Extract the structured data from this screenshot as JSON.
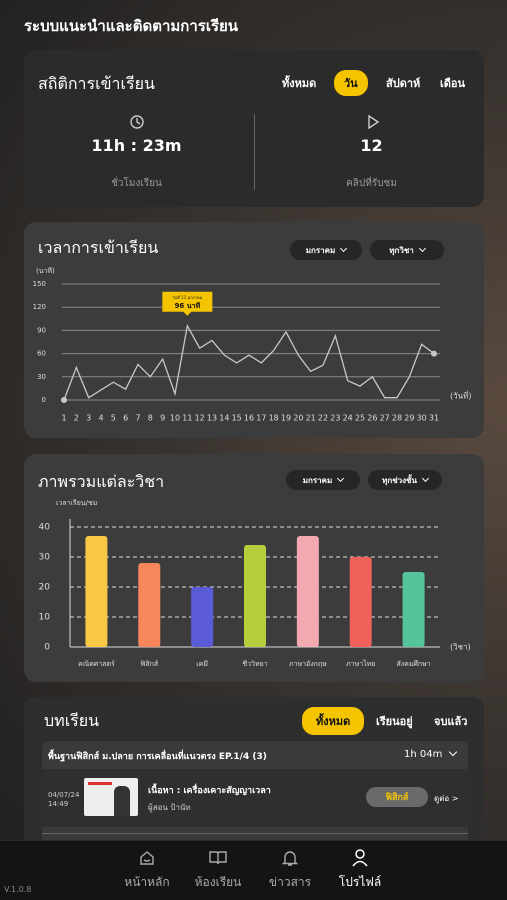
{
  "header": {
    "title": "ระบบแนะนำและติดตามการเรียน"
  },
  "stats": {
    "title": "สถิติการเข้าเรียน",
    "tabs": [
      "ทั้งหมด",
      "วัน",
      "สัปดาห์",
      "เดือน"
    ],
    "active_tab": 1,
    "items": [
      {
        "value": "11h : 23m",
        "label": "ชั่วโมงเรียน"
      },
      {
        "value": "12",
        "label": "คลิปที่รับชม"
      }
    ]
  },
  "chart_data": [
    {
      "type": "line",
      "title": "เวลาการเข้าเรียน",
      "filters": [
        "มกราคม",
        "ทุกวิชา"
      ],
      "y_label": "(นาที)",
      "x_label": "(วันที่)",
      "categories": [
        1,
        2,
        3,
        4,
        5,
        6,
        7,
        8,
        9,
        10,
        11,
        12,
        13,
        14,
        15,
        16,
        17,
        18,
        19,
        20,
        21,
        22,
        23,
        24,
        25,
        26,
        27,
        28,
        29,
        30,
        31
      ],
      "values": [
        0,
        42,
        3,
        13,
        23,
        14,
        46,
        30,
        53,
        8,
        96,
        67,
        77,
        58,
        48,
        58,
        48,
        64,
        88,
        58,
        37,
        45,
        83,
        25,
        18,
        30,
        3,
        3,
        30,
        72,
        60
      ],
      "ylim": [
        0,
        150
      ],
      "yticks": [
        0,
        30,
        60,
        90,
        120,
        150
      ],
      "grid": true,
      "color": "#c8c8c8",
      "annotation": {
        "title": "วันที่ 11 มกราคม",
        "text": "96 นาที"
      }
    },
    {
      "type": "bar",
      "title": "ภาพรวมแต่ละวิชา",
      "filters": [
        "มกราคม",
        "ทุกช่วงชั้น"
      ],
      "y_label": "เวลาเรียน/ชม",
      "x_label": "(วิชา)",
      "categories": [
        "คณิตศาสตร์",
        "ฟิสิกส์",
        "เคมี",
        "ชีววิทยา",
        "ภาษาอังกฤษ",
        "ภาษาไทย",
        "สังคมศึกษา"
      ],
      "values": [
        37,
        28,
        20,
        34,
        37,
        30,
        25
      ],
      "colors": [
        "#f9c846",
        "#f7875a",
        "#5b5bd6",
        "#b5cf3c",
        "#f2a9b0",
        "#f0615a",
        "#55c49a"
      ],
      "ylim": [
        0,
        40
      ],
      "yticks": [
        0,
        10,
        20,
        30,
        40
      ],
      "grid": true
    }
  ],
  "lessons": {
    "title": "บทเรียน",
    "tabs": [
      "ทั้งหมด",
      "เรียนอยู่",
      "จบแล้ว"
    ],
    "active_tab": 0,
    "group": {
      "title": "พื้นฐานฟิสิกส์ ม.ปลาย การเคลื่อนที่แนวตรง EP.1/4 (3)",
      "duration": "1h 04m"
    },
    "items": [
      {
        "date": "04/07/24",
        "time": "14:49",
        "title": "เนื้อหา : เครื่องเคาะสัญญาเวลา",
        "teacher": "ผู้สอน ป้านัท",
        "subject": "ฟิสิกส์",
        "action": "ดูต่อ >"
      }
    ]
  },
  "nav": {
    "items": [
      "หน้าหลัก",
      "ห้องเรียน",
      "ข่าวสาร",
      "โปรไฟล์"
    ],
    "active": 3
  },
  "version": "V.1.0.8"
}
